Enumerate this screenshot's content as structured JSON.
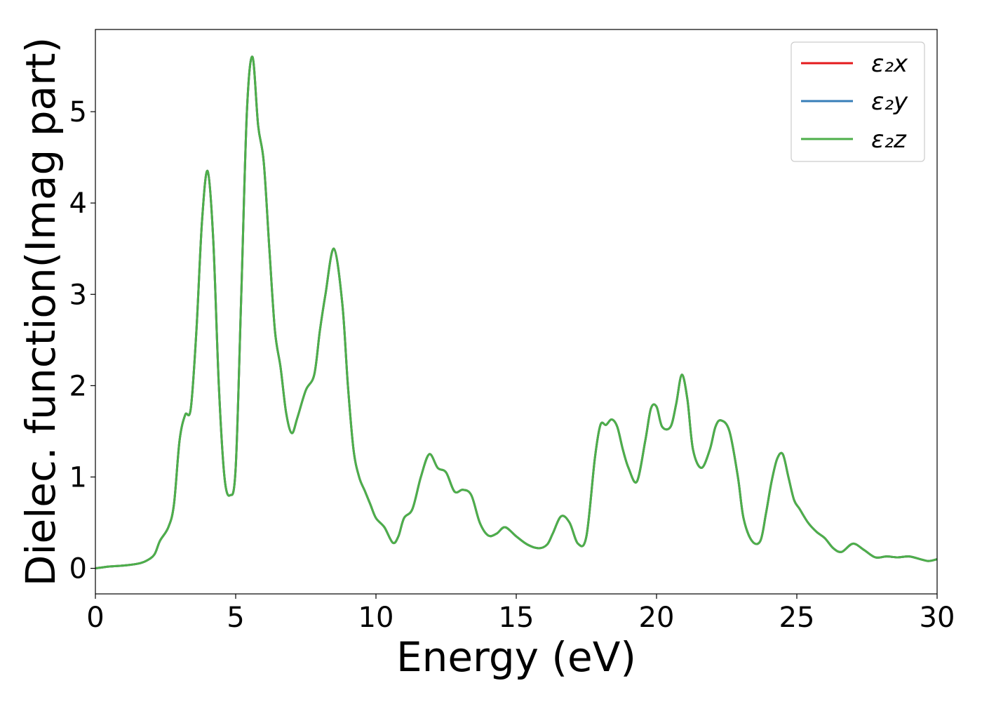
{
  "chart_data": {
    "type": "line",
    "xlabel": "Energy (eV)",
    "ylabel": "Dielec. function(Imag part)",
    "xlim": [
      0,
      30
    ],
    "ylim": [
      -0.28,
      5.9
    ],
    "xticks": [
      0,
      5,
      10,
      15,
      20,
      25,
      30
    ],
    "yticks": [
      0,
      1,
      2,
      3,
      4,
      5
    ],
    "grid": false,
    "legend_position": "top-right",
    "x": [
      0,
      0.5,
      1.0,
      1.5,
      1.8,
      2.1,
      2.3,
      2.6,
      2.8,
      3.0,
      3.2,
      3.4,
      3.6,
      3.8,
      4.0,
      4.2,
      4.4,
      4.6,
      4.8,
      5.0,
      5.2,
      5.4,
      5.6,
      5.8,
      6.0,
      6.2,
      6.4,
      6.6,
      6.8,
      7.0,
      7.2,
      7.5,
      7.8,
      8.0,
      8.2,
      8.5,
      8.8,
      9.0,
      9.2,
      9.4,
      9.6,
      9.8,
      10.0,
      10.3,
      10.6,
      10.8,
      11.0,
      11.3,
      11.6,
      11.9,
      12.2,
      12.5,
      12.8,
      13.1,
      13.4,
      13.7,
      14.0,
      14.3,
      14.6,
      15.0,
      15.4,
      15.8,
      16.1,
      16.3,
      16.6,
      16.9,
      17.2,
      17.5,
      17.8,
      18.0,
      18.2,
      18.4,
      18.6,
      18.8,
      19.0,
      19.3,
      19.6,
      19.8,
      20.0,
      20.2,
      20.5,
      20.7,
      20.9,
      21.1,
      21.3,
      21.6,
      21.9,
      22.1,
      22.3,
      22.6,
      22.9,
      23.1,
      23.4,
      23.7,
      23.9,
      24.1,
      24.3,
      24.5,
      24.7,
      24.9,
      25.1,
      25.4,
      25.7,
      26.0,
      26.3,
      26.6,
      27.0,
      27.4,
      27.8,
      28.2,
      28.6,
      29.0,
      29.4,
      29.7,
      30.0
    ],
    "series": [
      {
        "name": "ε₂x",
        "color": "#e41a1c",
        "values": [
          0.0,
          0.02,
          0.03,
          0.05,
          0.08,
          0.15,
          0.3,
          0.45,
          0.7,
          1.4,
          1.68,
          1.75,
          2.6,
          3.8,
          4.35,
          3.6,
          2.0,
          1.0,
          0.8,
          1.1,
          3.0,
          5.0,
          5.6,
          4.85,
          4.45,
          3.5,
          2.6,
          2.2,
          1.7,
          1.48,
          1.65,
          1.95,
          2.12,
          2.6,
          3.0,
          3.5,
          2.9,
          2.0,
          1.3,
          1.0,
          0.85,
          0.7,
          0.55,
          0.45,
          0.28,
          0.35,
          0.55,
          0.65,
          1.0,
          1.25,
          1.1,
          1.05,
          0.84,
          0.86,
          0.8,
          0.5,
          0.36,
          0.38,
          0.45,
          0.35,
          0.26,
          0.22,
          0.26,
          0.38,
          0.57,
          0.5,
          0.27,
          0.35,
          1.2,
          1.57,
          1.57,
          1.63,
          1.55,
          1.3,
          1.1,
          0.95,
          1.4,
          1.75,
          1.77,
          1.55,
          1.55,
          1.8,
          2.12,
          1.85,
          1.3,
          1.1,
          1.3,
          1.55,
          1.62,
          1.5,
          1.0,
          0.55,
          0.3,
          0.3,
          0.6,
          0.95,
          1.2,
          1.25,
          1.0,
          0.75,
          0.65,
          0.5,
          0.4,
          0.33,
          0.22,
          0.18,
          0.27,
          0.2,
          0.12,
          0.13,
          0.12,
          0.13,
          0.1,
          0.08,
          0.1
        ]
      },
      {
        "name": "ε₂y",
        "color": "#377eb8",
        "values": [
          0.0,
          0.02,
          0.03,
          0.05,
          0.08,
          0.15,
          0.3,
          0.45,
          0.7,
          1.4,
          1.68,
          1.75,
          2.6,
          3.8,
          4.35,
          3.6,
          2.0,
          1.0,
          0.8,
          1.1,
          3.0,
          5.0,
          5.6,
          4.85,
          4.45,
          3.5,
          2.6,
          2.2,
          1.7,
          1.48,
          1.65,
          1.95,
          2.12,
          2.6,
          3.0,
          3.5,
          2.9,
          2.0,
          1.3,
          1.0,
          0.85,
          0.7,
          0.55,
          0.45,
          0.28,
          0.35,
          0.55,
          0.65,
          1.0,
          1.25,
          1.1,
          1.05,
          0.84,
          0.86,
          0.8,
          0.5,
          0.36,
          0.38,
          0.45,
          0.35,
          0.26,
          0.22,
          0.26,
          0.38,
          0.57,
          0.5,
          0.27,
          0.35,
          1.2,
          1.57,
          1.57,
          1.63,
          1.55,
          1.3,
          1.1,
          0.95,
          1.4,
          1.75,
          1.77,
          1.55,
          1.55,
          1.8,
          2.12,
          1.85,
          1.3,
          1.1,
          1.3,
          1.55,
          1.62,
          1.5,
          1.0,
          0.55,
          0.3,
          0.3,
          0.6,
          0.95,
          1.2,
          1.25,
          1.0,
          0.75,
          0.65,
          0.5,
          0.4,
          0.33,
          0.22,
          0.18,
          0.27,
          0.2,
          0.12,
          0.13,
          0.12,
          0.13,
          0.1,
          0.08,
          0.1
        ]
      },
      {
        "name": "ε₂z",
        "color": "#4daf4a",
        "values": [
          0.0,
          0.02,
          0.03,
          0.05,
          0.08,
          0.15,
          0.3,
          0.45,
          0.7,
          1.4,
          1.68,
          1.75,
          2.6,
          3.8,
          4.35,
          3.6,
          2.0,
          1.0,
          0.8,
          1.1,
          3.0,
          5.0,
          5.6,
          4.85,
          4.45,
          3.5,
          2.6,
          2.2,
          1.7,
          1.48,
          1.65,
          1.95,
          2.12,
          2.6,
          3.0,
          3.5,
          2.9,
          2.0,
          1.3,
          1.0,
          0.85,
          0.7,
          0.55,
          0.45,
          0.28,
          0.35,
          0.55,
          0.65,
          1.0,
          1.25,
          1.1,
          1.05,
          0.84,
          0.86,
          0.8,
          0.5,
          0.36,
          0.38,
          0.45,
          0.35,
          0.26,
          0.22,
          0.26,
          0.38,
          0.57,
          0.5,
          0.27,
          0.35,
          1.2,
          1.57,
          1.57,
          1.63,
          1.55,
          1.3,
          1.1,
          0.95,
          1.4,
          1.75,
          1.77,
          1.55,
          1.55,
          1.8,
          2.12,
          1.85,
          1.3,
          1.1,
          1.3,
          1.55,
          1.62,
          1.5,
          1.0,
          0.55,
          0.3,
          0.3,
          0.6,
          0.95,
          1.2,
          1.25,
          1.0,
          0.75,
          0.65,
          0.5,
          0.4,
          0.33,
          0.22,
          0.18,
          0.27,
          0.2,
          0.12,
          0.13,
          0.12,
          0.13,
          0.1,
          0.08,
          0.1
        ]
      }
    ]
  }
}
